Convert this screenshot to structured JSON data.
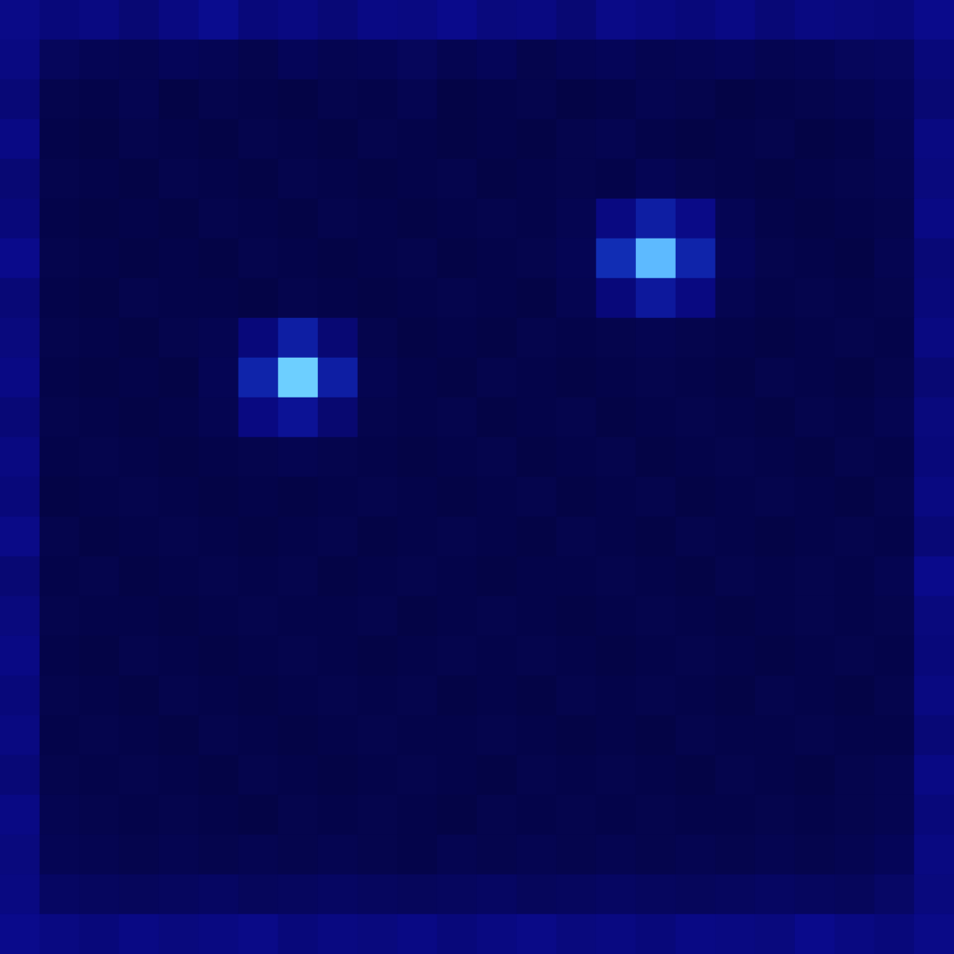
{
  "chart_data": {
    "type": "heatmap",
    "tick_labels": false,
    "grid": false,
    "value_range": [
      0,
      1
    ],
    "cells": [
      [
        0.32,
        0.28,
        0.3,
        0.26,
        0.3,
        0.34,
        0.28,
        0.3,
        0.27,
        0.31,
        0.3,
        0.33,
        0.29,
        0.3,
        0.26,
        0.32,
        0.3,
        0.28,
        0.31,
        0.27,
        0.3,
        0.29,
        0.28,
        0.33
      ],
      [
        0.3,
        0.19,
        0.17,
        0.16,
        0.18,
        0.17,
        0.15,
        0.18,
        0.16,
        0.17,
        0.19,
        0.16,
        0.18,
        0.15,
        0.17,
        0.18,
        0.16,
        0.17,
        0.18,
        0.16,
        0.17,
        0.19,
        0.2,
        0.28
      ],
      [
        0.27,
        0.15,
        0.14,
        0.16,
        0.13,
        0.15,
        0.14,
        0.13,
        0.15,
        0.14,
        0.16,
        0.13,
        0.14,
        0.15,
        0.13,
        0.14,
        0.16,
        0.15,
        0.13,
        0.14,
        0.15,
        0.16,
        0.18,
        0.26
      ],
      [
        0.31,
        0.14,
        0.13,
        0.15,
        0.14,
        0.13,
        0.15,
        0.14,
        0.13,
        0.15,
        0.14,
        0.13,
        0.14,
        0.13,
        0.15,
        0.16,
        0.14,
        0.13,
        0.14,
        0.15,
        0.13,
        0.14,
        0.17,
        0.3
      ],
      [
        0.26,
        0.15,
        0.14,
        0.13,
        0.15,
        0.14,
        0.13,
        0.15,
        0.14,
        0.13,
        0.14,
        0.15,
        0.13,
        0.14,
        0.15,
        0.14,
        0.17,
        0.15,
        0.14,
        0.13,
        0.14,
        0.15,
        0.16,
        0.29
      ],
      [
        0.28,
        0.14,
        0.13,
        0.14,
        0.13,
        0.15,
        0.14,
        0.13,
        0.15,
        0.14,
        0.13,
        0.14,
        0.15,
        0.14,
        0.16,
        0.3,
        0.4,
        0.32,
        0.17,
        0.14,
        0.13,
        0.14,
        0.15,
        0.31
      ],
      [
        0.33,
        0.15,
        0.14,
        0.13,
        0.14,
        0.13,
        0.15,
        0.14,
        0.13,
        0.14,
        0.15,
        0.13,
        0.14,
        0.15,
        0.17,
        0.45,
        0.85,
        0.42,
        0.18,
        0.15,
        0.14,
        0.13,
        0.16,
        0.27
      ],
      [
        0.27,
        0.14,
        0.13,
        0.15,
        0.14,
        0.14,
        0.13,
        0.15,
        0.14,
        0.13,
        0.14,
        0.15,
        0.14,
        0.13,
        0.16,
        0.28,
        0.38,
        0.3,
        0.16,
        0.14,
        0.15,
        0.14,
        0.15,
        0.28
      ],
      [
        0.29,
        0.15,
        0.14,
        0.13,
        0.15,
        0.16,
        0.28,
        0.4,
        0.26,
        0.15,
        0.13,
        0.14,
        0.13,
        0.15,
        0.14,
        0.15,
        0.16,
        0.15,
        0.14,
        0.13,
        0.14,
        0.15,
        0.14,
        0.3
      ],
      [
        0.31,
        0.14,
        0.13,
        0.14,
        0.13,
        0.17,
        0.42,
        0.9,
        0.4,
        0.16,
        0.14,
        0.13,
        0.15,
        0.14,
        0.13,
        0.14,
        0.15,
        0.14,
        0.13,
        0.15,
        0.14,
        0.13,
        0.15,
        0.26
      ],
      [
        0.27,
        0.15,
        0.14,
        0.13,
        0.14,
        0.16,
        0.3,
        0.36,
        0.25,
        0.15,
        0.14,
        0.15,
        0.13,
        0.14,
        0.15,
        0.13,
        0.14,
        0.15,
        0.14,
        0.13,
        0.15,
        0.14,
        0.16,
        0.29
      ],
      [
        0.3,
        0.14,
        0.15,
        0.14,
        0.13,
        0.14,
        0.15,
        0.16,
        0.15,
        0.14,
        0.13,
        0.14,
        0.15,
        0.13,
        0.14,
        0.15,
        0.13,
        0.14,
        0.15,
        0.14,
        0.13,
        0.15,
        0.14,
        0.28
      ],
      [
        0.28,
        0.13,
        0.14,
        0.15,
        0.14,
        0.13,
        0.14,
        0.13,
        0.14,
        0.15,
        0.14,
        0.13,
        0.14,
        0.15,
        0.13,
        0.14,
        0.15,
        0.13,
        0.14,
        0.15,
        0.14,
        0.13,
        0.15,
        0.3
      ],
      [
        0.32,
        0.15,
        0.13,
        0.14,
        0.15,
        0.14,
        0.13,
        0.14,
        0.15,
        0.13,
        0.14,
        0.15,
        0.14,
        0.13,
        0.15,
        0.14,
        0.13,
        0.15,
        0.14,
        0.13,
        0.14,
        0.15,
        0.14,
        0.27
      ],
      [
        0.26,
        0.14,
        0.15,
        0.13,
        0.14,
        0.15,
        0.14,
        0.15,
        0.13,
        0.14,
        0.15,
        0.14,
        0.13,
        0.14,
        0.14,
        0.15,
        0.14,
        0.13,
        0.15,
        0.14,
        0.15,
        0.14,
        0.16,
        0.33
      ],
      [
        0.29,
        0.15,
        0.14,
        0.14,
        0.13,
        0.14,
        0.15,
        0.14,
        0.14,
        0.15,
        0.13,
        0.14,
        0.15,
        0.14,
        0.13,
        0.14,
        0.15,
        0.14,
        0.13,
        0.14,
        0.15,
        0.14,
        0.15,
        0.29
      ],
      [
        0.31,
        0.14,
        0.13,
        0.15,
        0.14,
        0.13,
        0.14,
        0.15,
        0.14,
        0.13,
        0.14,
        0.15,
        0.14,
        0.15,
        0.14,
        0.13,
        0.14,
        0.15,
        0.14,
        0.13,
        0.14,
        0.15,
        0.14,
        0.28
      ],
      [
        0.28,
        0.15,
        0.14,
        0.13,
        0.15,
        0.14,
        0.13,
        0.14,
        0.15,
        0.14,
        0.15,
        0.13,
        0.14,
        0.13,
        0.15,
        0.14,
        0.15,
        0.14,
        0.13,
        0.15,
        0.14,
        0.13,
        0.15,
        0.3
      ],
      [
        0.3,
        0.14,
        0.15,
        0.14,
        0.13,
        0.15,
        0.14,
        0.13,
        0.14,
        0.15,
        0.14,
        0.14,
        0.15,
        0.14,
        0.13,
        0.14,
        0.13,
        0.15,
        0.14,
        0.14,
        0.15,
        0.14,
        0.14,
        0.27
      ],
      [
        0.27,
        0.15,
        0.14,
        0.15,
        0.14,
        0.13,
        0.15,
        0.14,
        0.13,
        0.14,
        0.15,
        0.14,
        0.13,
        0.15,
        0.14,
        0.15,
        0.14,
        0.13,
        0.15,
        0.14,
        0.13,
        0.15,
        0.16,
        0.31
      ],
      [
        0.31,
        0.16,
        0.15,
        0.14,
        0.15,
        0.14,
        0.13,
        0.15,
        0.14,
        0.15,
        0.14,
        0.13,
        0.15,
        0.14,
        0.15,
        0.14,
        0.15,
        0.14,
        0.14,
        0.15,
        0.14,
        0.15,
        0.16,
        0.28
      ],
      [
        0.29,
        0.17,
        0.16,
        0.15,
        0.16,
        0.15,
        0.16,
        0.15,
        0.16,
        0.15,
        0.14,
        0.16,
        0.15,
        0.16,
        0.15,
        0.16,
        0.15,
        0.16,
        0.15,
        0.16,
        0.15,
        0.16,
        0.18,
        0.3
      ],
      [
        0.3,
        0.21,
        0.2,
        0.19,
        0.2,
        0.21,
        0.19,
        0.2,
        0.21,
        0.2,
        0.19,
        0.2,
        0.21,
        0.19,
        0.2,
        0.21,
        0.2,
        0.19,
        0.2,
        0.21,
        0.2,
        0.19,
        0.22,
        0.29
      ],
      [
        0.33,
        0.3,
        0.28,
        0.31,
        0.29,
        0.3,
        0.32,
        0.28,
        0.3,
        0.29,
        0.31,
        0.28,
        0.3,
        0.32,
        0.29,
        0.3,
        0.28,
        0.31,
        0.3,
        0.29,
        0.33,
        0.3,
        0.28,
        0.32
      ]
    ]
  }
}
